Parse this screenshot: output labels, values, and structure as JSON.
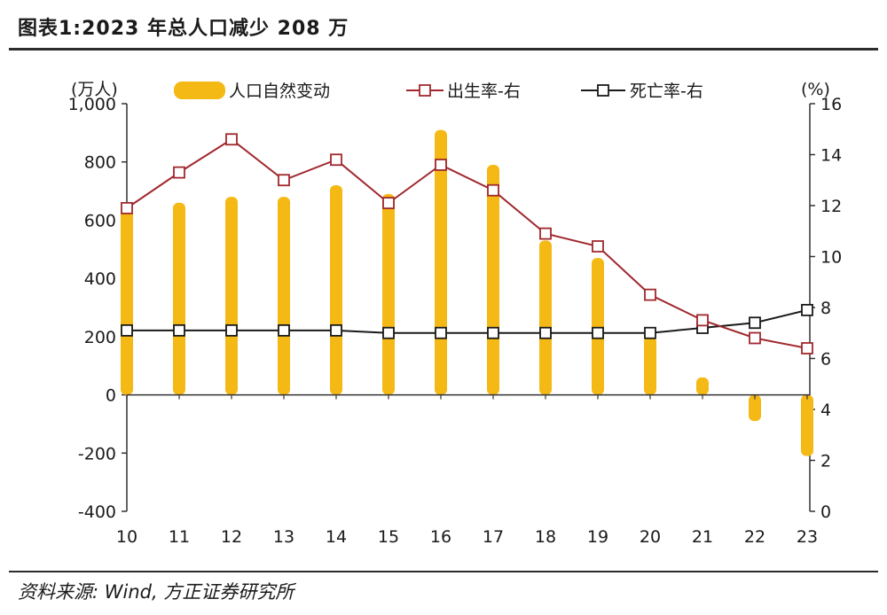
{
  "header": {
    "title": "图表1:2023 年总人口减少 208 万"
  },
  "footer": {
    "source": "资料来源: Wind, 方正证券研究所"
  },
  "chart_data": {
    "type": "bar+line",
    "title": "图表1:2023 年总人口减少 208 万",
    "categories": [
      "10",
      "11",
      "12",
      "13",
      "14",
      "15",
      "16",
      "17",
      "18",
      "19",
      "20",
      "21",
      "22",
      "23"
    ],
    "y_left": {
      "unit": "(万人)",
      "range": [
        -400,
        1000
      ],
      "ticks": [
        "-400",
        "-200",
        "0",
        "200",
        "400",
        "600",
        "800",
        "1,000"
      ]
    },
    "y_right": {
      "unit": "(%)",
      "range": [
        0,
        16
      ],
      "ticks": [
        "0",
        "2",
        "4",
        "6",
        "8",
        "10",
        "12",
        "14",
        "16"
      ]
    },
    "series": [
      {
        "name": "人口自然变动",
        "type": "bar",
        "axis": "left",
        "color": "#F5B915",
        "values": [
          640,
          660,
          680,
          680,
          720,
          690,
          910,
          790,
          530,
          470,
          200,
          60,
          -90,
          -210
        ]
      },
      {
        "name": "出生率-右",
        "type": "line",
        "axis": "right",
        "color": "#A0282D",
        "values": [
          11.9,
          13.3,
          14.6,
          13.0,
          13.8,
          12.1,
          13.6,
          12.6,
          10.9,
          10.4,
          8.5,
          7.5,
          6.8,
          6.4
        ]
      },
      {
        "name": "死亡率-右",
        "type": "line",
        "axis": "right",
        "color": "#1a1a1a",
        "values": [
          7.1,
          7.1,
          7.1,
          7.1,
          7.1,
          7.0,
          7.0,
          7.0,
          7.0,
          7.0,
          7.0,
          7.2,
          7.4,
          7.9
        ]
      }
    ]
  }
}
